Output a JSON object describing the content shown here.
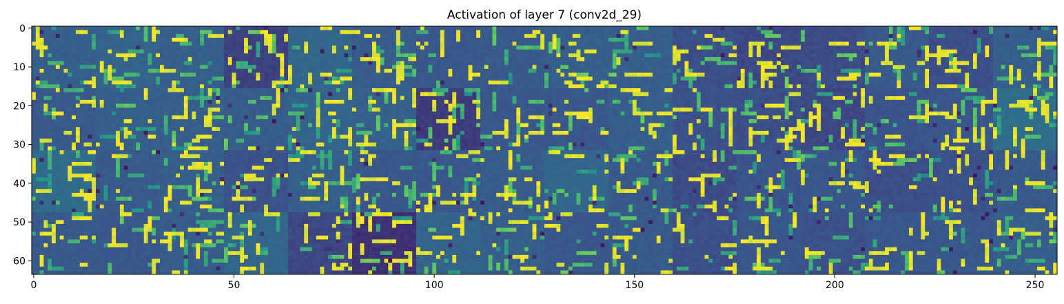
{
  "chart_data": {
    "type": "heatmap",
    "title": "Activation of layer 7 (conv2d_29)",
    "xlabel": "",
    "ylabel": "",
    "xlim": [
      -0.5,
      255.5
    ],
    "ylim": [
      63.5,
      -0.5
    ],
    "grid": false,
    "legend": "none",
    "colormap": "viridis",
    "colors": {
      "low": "#440154",
      "mid_low": "#3b528b",
      "mid": "#21918c",
      "mid_high": "#5ec962",
      "high": "#fde725"
    },
    "grid_shape": {
      "rows": 4,
      "cols": 16,
      "tile_size": 16
    },
    "x_ticks": [
      {
        "value": 0,
        "label": "0"
      },
      {
        "value": 50,
        "label": "50"
      },
      {
        "value": 100,
        "label": "100"
      },
      {
        "value": 150,
        "label": "150"
      },
      {
        "value": 200,
        "label": "200"
      },
      {
        "value": 250,
        "label": "250"
      }
    ],
    "y_ticks": [
      {
        "value": 0,
        "label": "0"
      },
      {
        "value": 10,
        "label": "10"
      },
      {
        "value": 20,
        "label": "20"
      },
      {
        "value": 30,
        "label": "30"
      },
      {
        "value": 40,
        "label": "40"
      },
      {
        "value": 50,
        "label": "50"
      },
      {
        "value": 60,
        "label": "60"
      }
    ],
    "tile_background_levels": [
      [
        0.3,
        0.32,
        0.3,
        0.2,
        0.33,
        0.29,
        0.27,
        0.28,
        0.3,
        0.3,
        0.24,
        0.22,
        0.23,
        0.28,
        0.24,
        0.3
      ],
      [
        0.28,
        0.3,
        0.3,
        0.29,
        0.32,
        0.31,
        0.18,
        0.27,
        0.27,
        0.3,
        0.25,
        0.24,
        0.22,
        0.26,
        0.27,
        0.36
      ],
      [
        0.35,
        0.28,
        0.3,
        0.25,
        0.3,
        0.27,
        0.27,
        0.29,
        0.33,
        0.28,
        0.23,
        0.26,
        0.27,
        0.24,
        0.25,
        0.28
      ],
      [
        0.28,
        0.27,
        0.29,
        0.33,
        0.22,
        0.15,
        0.32,
        0.3,
        0.27,
        0.28,
        0.24,
        0.27,
        0.25,
        0.27,
        0.27,
        0.3
      ]
    ]
  }
}
